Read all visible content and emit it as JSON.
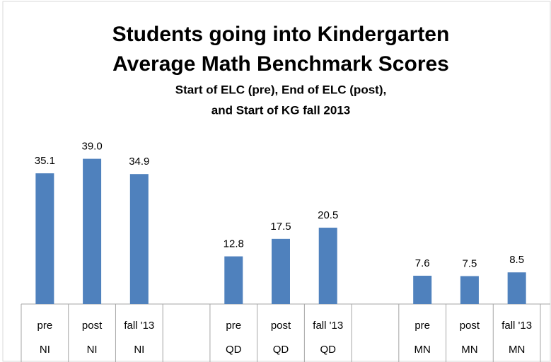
{
  "chart_data": {
    "type": "bar",
    "title": [
      "Students going into Kindergarten",
      "Average Math Benchmark Scores"
    ],
    "subtitle": [
      "Start of ELC (pre), End of ELC (post),",
      "and Start of KG fall 2013"
    ],
    "categories": [
      "pre",
      "post",
      "fall '13",
      null,
      "pre",
      "post",
      "fall '13",
      null,
      "pre",
      "post",
      "fall '13"
    ],
    "groups": [
      "NI",
      "NI",
      "NI",
      null,
      "QD",
      "QD",
      "QD",
      null,
      "MN",
      "MN",
      "MN"
    ],
    "values": [
      35.1,
      39.0,
      34.9,
      null,
      12.8,
      17.5,
      20.5,
      null,
      7.6,
      7.5,
      8.5
    ],
    "value_labels": [
      "35.1",
      "39.0",
      "34.9",
      null,
      "12.8",
      "17.5",
      "20.5",
      null,
      "7.6",
      "7.5",
      "8.5"
    ],
    "color": "#4f81bd",
    "ylim": [
      0,
      45
    ]
  }
}
